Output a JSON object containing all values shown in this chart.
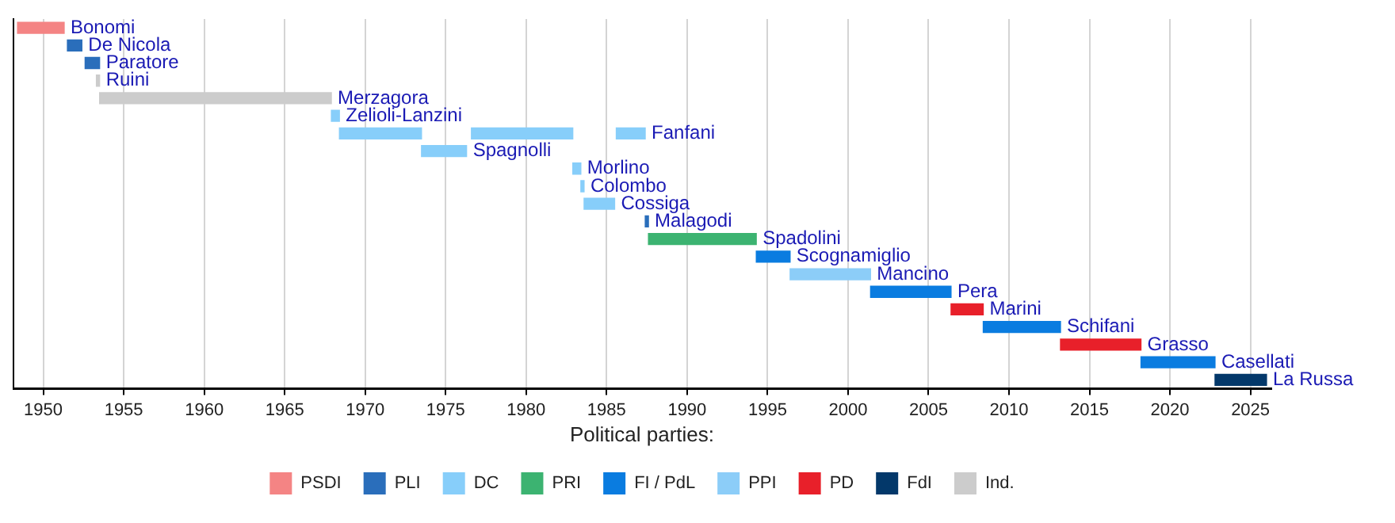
{
  "chart_data": {
    "type": "bar",
    "orientation": "horizontal",
    "legend_title": "Political parties:",
    "legend": "bottom",
    "grid": "x",
    "tick_labels": "x",
    "categories": [
      "Bonomi",
      "De Nicola",
      "Paratore",
      "Ruini",
      "Merzagora",
      "Zelioli-Lanzini",
      "Fanfani",
      "Spagnolli",
      "Morlino",
      "Colombo",
      "Cossiga",
      "Malagodi",
      "Spadolini",
      "Scognamiglio",
      "Mancino",
      "Pera",
      "Marini",
      "Schifani",
      "Grasso",
      "Casellati",
      "La Russa"
    ],
    "xlim": [
      1948.1,
      2026.3
    ],
    "xticks": [
      1950,
      1955,
      1960,
      1965,
      1970,
      1975,
      1980,
      1985,
      1990,
      1995,
      2000,
      2005,
      2010,
      2015,
      2020,
      2025
    ],
    "series": [
      {
        "name": "PSDI",
        "color": "#f48484",
        "base": [
          1948.4,
          null,
          null,
          null,
          null,
          null,
          null,
          null,
          null,
          null,
          null,
          null,
          null,
          null,
          null,
          null,
          null,
          null,
          null,
          null,
          null
        ],
        "values": [
          2.9,
          null,
          null,
          null,
          null,
          null,
          null,
          null,
          null,
          null,
          null,
          null,
          null,
          null,
          null,
          null,
          null,
          null,
          null,
          null,
          null
        ]
      },
      {
        "name": "PLI",
        "color": "#2a6ebb",
        "base": [
          null,
          1951.5,
          1952.6,
          null,
          null,
          null,
          null,
          null,
          null,
          null,
          null,
          1987.4,
          null,
          null,
          null,
          null,
          null,
          null,
          null,
          null,
          null
        ],
        "values": [
          null,
          0.9,
          0.9,
          null,
          null,
          null,
          null,
          null,
          null,
          null,
          null,
          0.2,
          null,
          null,
          null,
          null,
          null,
          null,
          null,
          null,
          null
        ]
      },
      {
        "name": "DC",
        "color": "#87cefa",
        "base": [
          null,
          null,
          null,
          null,
          null,
          1967.9,
          1968.4,
          1973.5,
          1982.9,
          1983.4,
          1983.6,
          null,
          null,
          null,
          null,
          null,
          null,
          null,
          null,
          null,
          null
        ],
        "values": [
          null,
          null,
          null,
          null,
          null,
          0.5,
          5.1,
          2.8,
          0.5,
          0.2,
          1.9,
          null,
          null,
          null,
          null,
          null,
          null,
          null,
          null,
          null,
          null
        ]
      },
      {
        "name": "PRI",
        "color": "#3cb371",
        "base": [
          null,
          null,
          null,
          null,
          null,
          null,
          null,
          null,
          null,
          null,
          null,
          null,
          1987.6,
          null,
          null,
          null,
          null,
          null,
          null,
          null,
          null
        ],
        "values": [
          null,
          null,
          null,
          null,
          null,
          null,
          null,
          null,
          null,
          null,
          null,
          null,
          6.7,
          null,
          null,
          null,
          null,
          null,
          null,
          null,
          null
        ]
      },
      {
        "name": "FI / PdL",
        "color": "#0a7ce0",
        "base": [
          null,
          null,
          null,
          null,
          null,
          null,
          null,
          null,
          null,
          null,
          null,
          null,
          null,
          1994.3,
          null,
          2001.4,
          null,
          2008.4,
          null,
          2018.2,
          null
        ],
        "values": [
          null,
          null,
          null,
          null,
          null,
          null,
          null,
          null,
          null,
          null,
          null,
          null,
          null,
          2.1,
          null,
          5.0,
          null,
          4.8,
          null,
          4.6,
          null
        ]
      },
      {
        "name": "PPI",
        "color": "#8ccdf8",
        "base": [
          null,
          null,
          null,
          null,
          null,
          null,
          null,
          null,
          null,
          null,
          null,
          null,
          null,
          null,
          1996.4,
          null,
          null,
          null,
          null,
          null,
          null
        ],
        "values": [
          null,
          null,
          null,
          null,
          null,
          null,
          null,
          null,
          null,
          null,
          null,
          null,
          null,
          null,
          5.0,
          null,
          null,
          null,
          null,
          null,
          null
        ]
      },
      {
        "name": "PD",
        "color": "#e8202a",
        "base": [
          null,
          null,
          null,
          null,
          null,
          null,
          null,
          null,
          null,
          null,
          null,
          null,
          null,
          null,
          null,
          null,
          2006.4,
          null,
          2013.2,
          null,
          null
        ],
        "values": [
          null,
          null,
          null,
          null,
          null,
          null,
          null,
          null,
          null,
          null,
          null,
          null,
          null,
          null,
          null,
          null,
          2.0,
          null,
          5.0,
          null,
          null
        ]
      },
      {
        "name": "FdI",
        "color": "#03386a",
        "base": [
          null,
          null,
          null,
          null,
          null,
          null,
          null,
          null,
          null,
          null,
          null,
          null,
          null,
          null,
          null,
          null,
          null,
          null,
          null,
          null,
          2022.8
        ],
        "values": [
          null,
          null,
          null,
          null,
          null,
          null,
          null,
          null,
          null,
          null,
          null,
          null,
          null,
          null,
          null,
          null,
          null,
          null,
          null,
          null,
          3.2
        ]
      },
      {
        "name": "Ind.",
        "color": "#cccccc",
        "base": [
          null,
          null,
          null,
          1953.3,
          1953.5,
          null,
          null,
          null,
          null,
          null,
          null,
          null,
          null,
          null,
          null,
          null,
          null,
          null,
          null,
          null,
          null
        ],
        "values": [
          null,
          null,
          null,
          0.2,
          14.4,
          null,
          null,
          null,
          null,
          null,
          null,
          null,
          null,
          null,
          null,
          null,
          null,
          null,
          null,
          null,
          null
        ]
      },
      {
        "color": "#87cefa",
        "base": [
          null,
          null,
          null,
          null,
          null,
          null,
          1976.6,
          null,
          null,
          null,
          null,
          null,
          null,
          null,
          null,
          null,
          null,
          null,
          null,
          null,
          null
        ],
        "values": [
          null,
          null,
          null,
          null,
          null,
          null,
          6.3,
          null,
          null,
          null,
          null,
          null,
          null,
          null,
          null,
          null,
          null,
          null,
          null,
          null,
          null
        ]
      },
      {
        "color": "#87cefa",
        "base": [
          null,
          null,
          null,
          null,
          null,
          null,
          1985.6,
          null,
          null,
          null,
          null,
          null,
          null,
          null,
          null,
          null,
          null,
          null,
          null,
          null,
          null
        ],
        "values": [
          null,
          null,
          null,
          null,
          null,
          null,
          1.8,
          null,
          null,
          null,
          null,
          null,
          null,
          null,
          null,
          null,
          null,
          null,
          null,
          null,
          null
        ]
      }
    ]
  }
}
